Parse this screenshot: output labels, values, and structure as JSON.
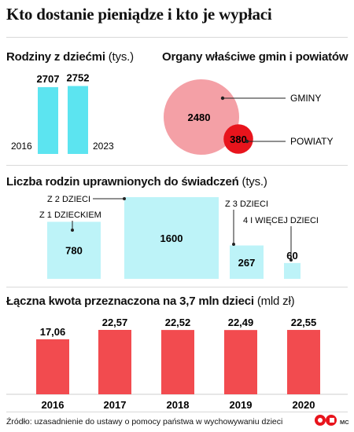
{
  "title": "Kto dostanie pieniądze i kto je wypłaci",
  "chart_data": [
    {
      "type": "bar",
      "title": "Rodziny z dziećmi",
      "unit": "(tys.)",
      "categories": [
        "2016",
        "2023"
      ],
      "values": [
        2707,
        2752
      ],
      "ylim": [
        0,
        2800
      ],
      "color": "#5ce4f0"
    },
    {
      "type": "bubble",
      "title": "Organy właściwe gmin i powiatów",
      "items": [
        {
          "label": "GMINY",
          "value": 2480,
          "color": "#f4a0a6"
        },
        {
          "label": "POWIATY",
          "value": 380,
          "color": "#e8141c"
        }
      ]
    },
    {
      "type": "bar",
      "title": "Liczba rodzin uprawnionych do świadczeń",
      "unit": "(tys.)",
      "categories": [
        "Z 1 DZIECKIEM",
        "Z 2 DZIECI",
        "Z 3 DZIECI",
        "4 I WIĘCEJ DZIECI"
      ],
      "values": [
        780,
        1600,
        267,
        60
      ],
      "color": "#bdf3f8"
    },
    {
      "type": "bar",
      "title": "Łączna kwota przeznaczona na 3,7 mln dzieci",
      "unit": "(mld zł)",
      "categories": [
        "2016",
        "2017",
        "2018",
        "2019",
        "2020"
      ],
      "values": [
        "17,06",
        "22,57",
        "22,52",
        "22,49",
        "22,55"
      ],
      "color": "#f24b4f"
    }
  ],
  "source": "Źródło: uzasadnienie do ustawy o pomocy państwa w wychowywaniu dzieci",
  "logo_text": "MC",
  "colors": {
    "cyan": "#5ce4f0",
    "light_cyan": "#bdf3f8",
    "red": "#f24b4f",
    "pink": "#f4a0a6",
    "dark_red": "#e8141c"
  }
}
